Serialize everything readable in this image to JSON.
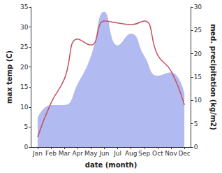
{
  "chart_data": {
    "type": "line",
    "x_label": "date (month)",
    "y_label": "max temp (C)",
    "y2_label": "med. precipitation (kg/m2)",
    "categories": [
      "Jan",
      "Feb",
      "Mar",
      "Apr",
      "May",
      "Jun",
      "Jul",
      "Aug",
      "Sep",
      "Oct",
      "Nov",
      "Dec"
    ],
    "series": [
      {
        "type": "area",
        "axis": "y2",
        "color": "#aab4f0",
        "values": [
          6.3,
          9,
          9,
          13.5,
          19.5,
          29,
          21.8,
          24.3,
          19.5,
          15.3,
          16,
          11.5
        ]
      },
      {
        "type": "line",
        "color": "#c8505a",
        "values": [
          2.5,
          11,
          17,
          27,
          25.5,
          31.5,
          31,
          30.6,
          31.5,
          23,
          19,
          10.5
        ]
      }
    ],
    "ylim": [
      0,
      35
    ],
    "yticks": [
      0,
      5,
      10,
      15,
      20,
      25,
      30,
      35
    ],
    "y2lim": [
      0,
      30
    ],
    "y2ticks": [
      0,
      5,
      10,
      15,
      20,
      25,
      30
    ],
    "grid": false
  }
}
